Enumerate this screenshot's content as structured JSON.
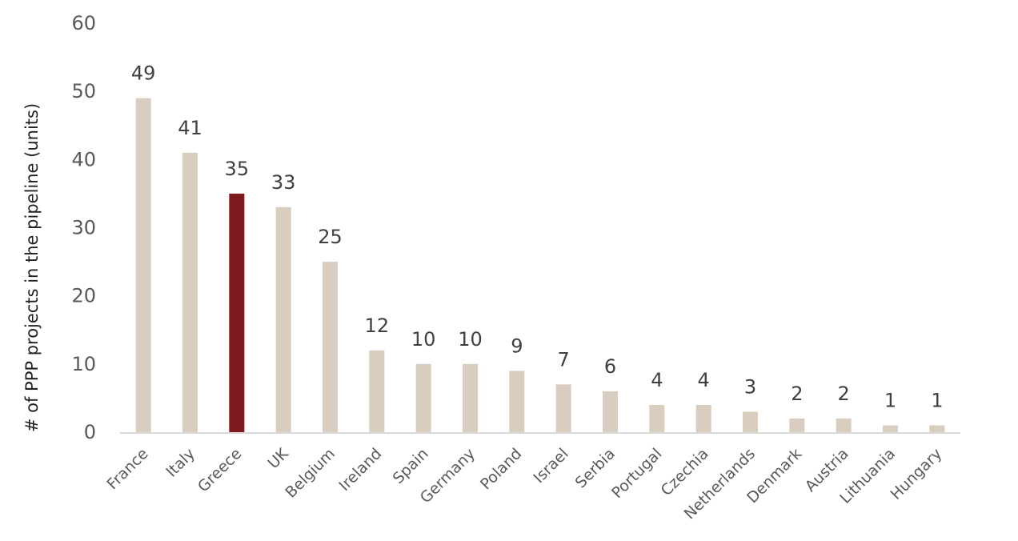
{
  "chart_data": {
    "type": "bar",
    "title": "",
    "xlabel": "",
    "ylabel": "# of PPP projects in the pipeline (units)",
    "ylim": [
      0,
      60
    ],
    "yticks": [
      0,
      10,
      20,
      30,
      40,
      50,
      60
    ],
    "grid": false,
    "legend": "none",
    "categories": [
      "France",
      "Italy",
      "Greece",
      "UK",
      "Belgium",
      "Ireland",
      "Spain",
      "Germany",
      "Poland",
      "Israel",
      "Serbia",
      "Portugal",
      "Czechia",
      "Netherlands",
      "Denmark",
      "Austria",
      "Lithuania",
      "Hungary"
    ],
    "values": [
      49,
      41,
      35,
      33,
      25,
      12,
      10,
      10,
      9,
      7,
      6,
      4,
      4,
      3,
      2,
      2,
      1,
      1
    ],
    "highlight_category": "Greece",
    "colors": {
      "bar": "#d9cdbf",
      "highlight": "#7f1a1e",
      "axis": "#d9d9d9"
    }
  }
}
